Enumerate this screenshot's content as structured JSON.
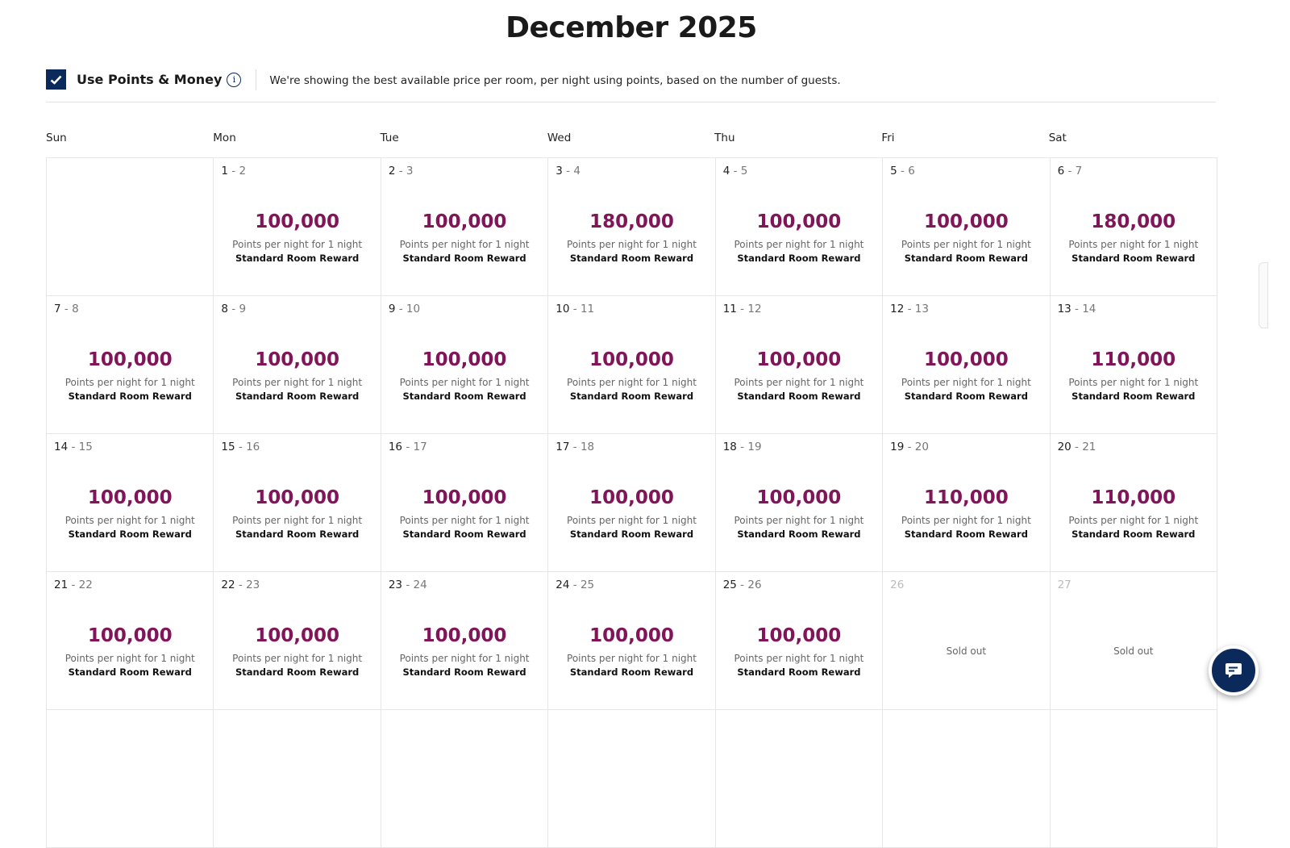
{
  "title": "December 2025",
  "toolbar": {
    "checkbox_label": "Use Points & Money",
    "checked": true,
    "info_icon": "info-icon",
    "description": "We're showing the best available price per room, per night using points, based on the number of guests."
  },
  "colors": {
    "price": "#80155a",
    "brand_navy": "#0b2a5b"
  },
  "weekdays": [
    "Sun",
    "Mon",
    "Tue",
    "Wed",
    "Thu",
    "Fri",
    "Sat"
  ],
  "price_subtitle": "Points per night for 1 night",
  "room_type": "Standard Room Reward",
  "sold_out_label": "Sold out",
  "weeks": [
    [
      null,
      {
        "from": "1",
        "to": "2",
        "points": "100,000"
      },
      {
        "from": "2",
        "to": "3",
        "points": "100,000"
      },
      {
        "from": "3",
        "to": "4",
        "points": "180,000"
      },
      {
        "from": "4",
        "to": "5",
        "points": "100,000"
      },
      {
        "from": "5",
        "to": "6",
        "points": "100,000"
      },
      {
        "from": "6",
        "to": "7",
        "points": "180,000"
      }
    ],
    [
      {
        "from": "7",
        "to": "8",
        "points": "100,000"
      },
      {
        "from": "8",
        "to": "9",
        "points": "100,000"
      },
      {
        "from": "9",
        "to": "10",
        "points": "100,000"
      },
      {
        "from": "10",
        "to": "11",
        "points": "100,000"
      },
      {
        "from": "11",
        "to": "12",
        "points": "100,000"
      },
      {
        "from": "12",
        "to": "13",
        "points": "100,000"
      },
      {
        "from": "13",
        "to": "14",
        "points": "110,000"
      }
    ],
    [
      {
        "from": "14",
        "to": "15",
        "points": "100,000"
      },
      {
        "from": "15",
        "to": "16",
        "points": "100,000"
      },
      {
        "from": "16",
        "to": "17",
        "points": "100,000"
      },
      {
        "from": "17",
        "to": "18",
        "points": "100,000"
      },
      {
        "from": "18",
        "to": "19",
        "points": "100,000"
      },
      {
        "from": "19",
        "to": "20",
        "points": "110,000"
      },
      {
        "from": "20",
        "to": "21",
        "points": "110,000"
      }
    ],
    [
      {
        "from": "21",
        "to": "22",
        "points": "100,000"
      },
      {
        "from": "22",
        "to": "23",
        "points": "100,000"
      },
      {
        "from": "23",
        "to": "24",
        "points": "100,000"
      },
      {
        "from": "24",
        "to": "25",
        "points": "100,000"
      },
      {
        "from": "25",
        "to": "26",
        "points": "100,000"
      },
      {
        "from": "26",
        "sold_out": true
      },
      {
        "from": "27",
        "sold_out": true
      }
    ]
  ],
  "chat_button": "chat-icon"
}
